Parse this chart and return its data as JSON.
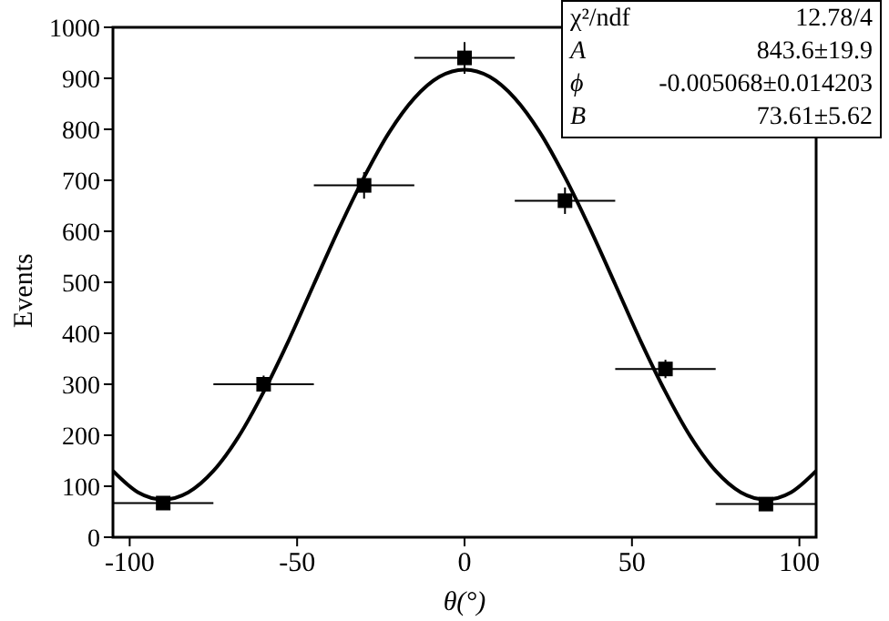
{
  "chart_data": {
    "type": "scatter",
    "xlabel": "θ(°)",
    "ylabel": "Events",
    "xlim": [
      -105,
      105
    ],
    "xticks": [
      -100,
      -50,
      0,
      50,
      100
    ],
    "ylim": [
      0,
      1000
    ],
    "yticks": [
      0,
      100,
      200,
      300,
      400,
      500,
      600,
      700,
      800,
      900,
      1000
    ],
    "marker": "square",
    "annotations": [
      "χ²/ndf",
      "12.78/4",
      "A",
      "843.6±19.9",
      "ϕ",
      "-0.005068±0.014203",
      "B",
      "73.61±5.62"
    ],
    "series": [
      {
        "color": "#000000",
        "x": [
          -90,
          -60,
          -30,
          0,
          30,
          60,
          90
        ],
        "values": [
          67,
          300,
          690,
          940,
          660,
          330,
          65
        ],
        "errors": [
          8,
          17,
          26,
          31,
          26,
          18,
          8
        ],
        "xerrors": [
          15,
          15,
          15,
          15,
          15,
          15,
          15
        ]
      },
      {
        "type": "line",
        "marker": "none",
        "color": "#000000",
        "x": [
          -105,
          -97.5,
          -90,
          -82.5,
          -75,
          -67.5,
          -60,
          -52.5,
          -45,
          -37.5,
          -30,
          -22.5,
          -15,
          -7.5,
          0,
          7.5,
          15,
          22.5,
          30,
          37.5,
          45,
          52.5,
          60,
          67.5,
          75,
          82.5,
          90,
          97.5,
          105
        ],
        "values": [
          130,
          88,
          74,
          88,
          130,
          197,
          285,
          386,
          496,
          605,
          706,
          794,
          861,
          903,
          917,
          903,
          861,
          794,
          706,
          605,
          496,
          386,
          285,
          197,
          130,
          88,
          74,
          88,
          130
        ]
      }
    ]
  }
}
